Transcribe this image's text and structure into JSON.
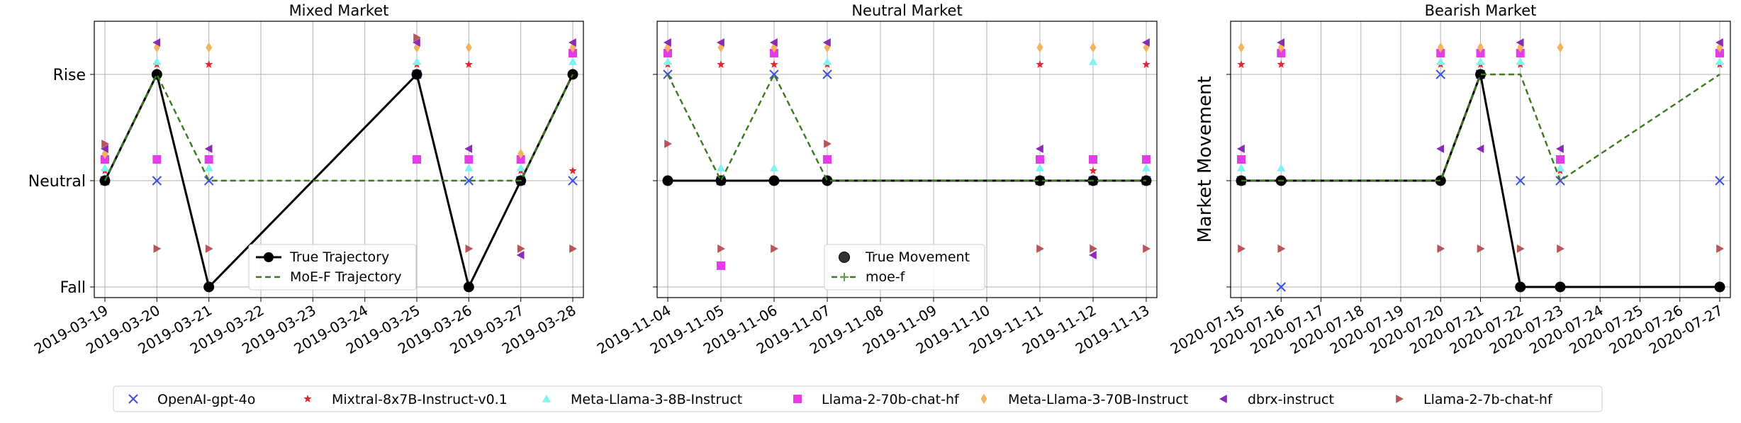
{
  "chart_data": [
    {
      "type": "line",
      "title": "Mixed Market",
      "xlabel": "",
      "ylabel": "",
      "x": [
        "2019-03-19",
        "2019-03-20",
        "2019-03-21",
        "2019-03-22",
        "2019-03-23",
        "2019-03-24",
        "2019-03-25",
        "2019-03-26",
        "2019-03-27",
        "2019-03-28"
      ],
      "y_categories": [
        "Fall",
        "Neutral",
        "Rise"
      ],
      "ylim": [
        -1.1,
        2.0
      ],
      "grid": true,
      "legend_position": "bottom-center",
      "series": [
        {
          "name": "True Trajectory",
          "style": "solid-marker",
          "color": "#000000",
          "points": [
            [
              "2019-03-19",
              1
            ],
            [
              "2019-03-20",
              2
            ],
            [
              "2019-03-21",
              0
            ],
            [
              "2019-03-25",
              2
            ],
            [
              "2019-03-26",
              0
            ],
            [
              "2019-03-27",
              1
            ],
            [
              "2019-03-28",
              2
            ]
          ]
        },
        {
          "name": "MoE-F Trajectory",
          "style": "dashed",
          "color": "#3b7a1a",
          "points": [
            [
              "2019-03-19",
              1
            ],
            [
              "2019-03-20",
              2
            ],
            [
              "2019-03-21",
              1
            ],
            [
              "2019-03-25",
              1
            ],
            [
              "2019-03-26",
              1
            ],
            [
              "2019-03-27",
              1
            ],
            [
              "2019-03-28",
              2
            ]
          ]
        }
      ],
      "expert_predictions": {
        "OpenAI-gpt-4o": [
          [
            "2019-03-19",
            1
          ],
          [
            "2019-03-20",
            1
          ],
          [
            "2019-03-21",
            1
          ],
          [
            "2019-03-25",
            2
          ],
          [
            "2019-03-26",
            1
          ],
          [
            "2019-03-27",
            1
          ],
          [
            "2019-03-28",
            1
          ]
        ],
        "Mixtral-8x7B-Instruct-v0.1": [
          [
            "2019-03-19",
            1
          ],
          [
            "2019-03-20",
            2
          ],
          [
            "2019-03-21",
            2
          ],
          [
            "2019-03-25",
            2
          ],
          [
            "2019-03-26",
            2
          ],
          [
            "2019-03-27",
            1
          ],
          [
            "2019-03-28",
            1
          ]
        ],
        "Meta-Llama-3-8B-Instruct": [
          [
            "2019-03-19",
            1
          ],
          [
            "2019-03-20",
            2
          ],
          [
            "2019-03-21",
            1
          ],
          [
            "2019-03-25",
            2
          ],
          [
            "2019-03-26",
            1
          ],
          [
            "2019-03-27",
            1
          ],
          [
            "2019-03-28",
            2
          ]
        ],
        "Llama-2-70b-chat-hf": [
          [
            "2019-03-19",
            1
          ],
          [
            "2019-03-20",
            1
          ],
          [
            "2019-03-21",
            1
          ],
          [
            "2019-03-25",
            1
          ],
          [
            "2019-03-26",
            1
          ],
          [
            "2019-03-27",
            1
          ],
          [
            "2019-03-28",
            2
          ]
        ],
        "Meta-Llama-3-70B-Instruct": [
          [
            "2019-03-19",
            1
          ],
          [
            "2019-03-20",
            2
          ],
          [
            "2019-03-21",
            2
          ],
          [
            "2019-03-25",
            2
          ],
          [
            "2019-03-26",
            2
          ],
          [
            "2019-03-27",
            1
          ],
          [
            "2019-03-28",
            2
          ]
        ],
        "dbrx-instruct": [
          [
            "2019-03-19",
            1
          ],
          [
            "2019-03-20",
            2
          ],
          [
            "2019-03-21",
            1
          ],
          [
            "2019-03-25",
            2
          ],
          [
            "2019-03-26",
            1
          ],
          [
            "2019-03-27",
            0
          ],
          [
            "2019-03-28",
            2
          ]
        ],
        "Llama-2-7b-chat-hf": [
          [
            "2019-03-19",
            1
          ],
          [
            "2019-03-20",
            0
          ],
          [
            "2019-03-21",
            0
          ],
          [
            "2019-03-25",
            2
          ],
          [
            "2019-03-26",
            0
          ],
          [
            "2019-03-27",
            0
          ],
          [
            "2019-03-28",
            0
          ]
        ]
      }
    },
    {
      "type": "line",
      "title": "Neutral Market",
      "xlabel": "",
      "ylabel": "",
      "x": [
        "2019-11-04",
        "2019-11-05",
        "2019-11-06",
        "2019-11-07",
        "2019-11-08",
        "2019-11-09",
        "2019-11-10",
        "2019-11-11",
        "2019-11-12",
        "2019-11-13"
      ],
      "y_categories": [
        "Fall",
        "Neutral",
        "Rise"
      ],
      "ylim": [
        -1.1,
        2.0
      ],
      "grid": true,
      "legend_position": "bottom-center",
      "series": [
        {
          "name": "True Movement",
          "style": "marker",
          "color": "#000000",
          "points": [
            [
              "2019-11-04",
              1
            ],
            [
              "2019-11-05",
              1
            ],
            [
              "2019-11-06",
              1
            ],
            [
              "2019-11-07",
              1
            ],
            [
              "2019-11-11",
              1
            ],
            [
              "2019-11-12",
              1
            ],
            [
              "2019-11-13",
              1
            ]
          ]
        },
        {
          "name": "moe-f",
          "style": "dashed",
          "color": "#3b7a1a",
          "points": [
            [
              "2019-11-04",
              2
            ],
            [
              "2019-11-05",
              1
            ],
            [
              "2019-11-06",
              2
            ],
            [
              "2019-11-07",
              1
            ],
            [
              "2019-11-11",
              1
            ],
            [
              "2019-11-12",
              1
            ],
            [
              "2019-11-13",
              1
            ]
          ]
        }
      ],
      "expert_predictions": {
        "OpenAI-gpt-4o": [
          [
            "2019-11-04",
            2
          ],
          [
            "2019-11-05",
            1
          ],
          [
            "2019-11-06",
            2
          ],
          [
            "2019-11-07",
            2
          ],
          [
            "2019-11-11",
            1
          ],
          [
            "2019-11-12",
            1
          ],
          [
            "2019-11-13",
            1
          ]
        ],
        "Mixtral-8x7B-Instruct-v0.1": [
          [
            "2019-11-04",
            2
          ],
          [
            "2019-11-05",
            2
          ],
          [
            "2019-11-06",
            2
          ],
          [
            "2019-11-07",
            2
          ],
          [
            "2019-11-11",
            2
          ],
          [
            "2019-11-12",
            1
          ],
          [
            "2019-11-13",
            2
          ]
        ],
        "Meta-Llama-3-8B-Instruct": [
          [
            "2019-11-04",
            2
          ],
          [
            "2019-11-05",
            1
          ],
          [
            "2019-11-06",
            1
          ],
          [
            "2019-11-07",
            2
          ],
          [
            "2019-11-11",
            1
          ],
          [
            "2019-11-12",
            2
          ],
          [
            "2019-11-13",
            1
          ]
        ],
        "Llama-2-70b-chat-hf": [
          [
            "2019-11-04",
            2
          ],
          [
            "2019-11-05",
            0
          ],
          [
            "2019-11-06",
            2
          ],
          [
            "2019-11-07",
            1
          ],
          [
            "2019-11-11",
            1
          ],
          [
            "2019-11-12",
            1
          ],
          [
            "2019-11-13",
            1
          ]
        ],
        "Meta-Llama-3-70B-Instruct": [
          [
            "2019-11-04",
            2
          ],
          [
            "2019-11-05",
            2
          ],
          [
            "2019-11-06",
            2
          ],
          [
            "2019-11-07",
            2
          ],
          [
            "2019-11-11",
            2
          ],
          [
            "2019-11-12",
            2
          ],
          [
            "2019-11-13",
            2
          ]
        ],
        "dbrx-instruct": [
          [
            "2019-11-04",
            2
          ],
          [
            "2019-11-05",
            2
          ],
          [
            "2019-11-06",
            2
          ],
          [
            "2019-11-07",
            2
          ],
          [
            "2019-11-11",
            1
          ],
          [
            "2019-11-12",
            0
          ],
          [
            "2019-11-13",
            2
          ]
        ],
        "Llama-2-7b-chat-hf": [
          [
            "2019-11-04",
            1
          ],
          [
            "2019-11-05",
            0
          ],
          [
            "2019-11-06",
            0
          ],
          [
            "2019-11-07",
            1
          ],
          [
            "2019-11-11",
            0
          ],
          [
            "2019-11-12",
            0
          ],
          [
            "2019-11-13",
            0
          ]
        ]
      }
    },
    {
      "type": "line",
      "title": "Bearish Market",
      "xlabel": "",
      "ylabel": "Market Movement",
      "x": [
        "2020-07-15",
        "2020-07-16",
        "2020-07-17",
        "2020-07-18",
        "2020-07-19",
        "2020-07-20",
        "2020-07-21",
        "2020-07-22",
        "2020-07-23",
        "2020-07-24",
        "2020-07-25",
        "2020-07-26",
        "2020-07-27"
      ],
      "y_categories": [
        "Fall",
        "Neutral",
        "Rise"
      ],
      "ylim": [
        -1.1,
        2.0
      ],
      "grid": true,
      "series": [
        {
          "name": "True Movement",
          "style": "solid-marker",
          "color": "#000000",
          "points": [
            [
              "2020-07-15",
              1
            ],
            [
              "2020-07-16",
              1
            ],
            [
              "2020-07-20",
              1
            ],
            [
              "2020-07-21",
              2
            ],
            [
              "2020-07-22",
              0
            ],
            [
              "2020-07-23",
              0
            ],
            [
              "2020-07-27",
              0
            ]
          ]
        },
        {
          "name": "moe-f",
          "style": "dashed",
          "color": "#3b7a1a",
          "points": [
            [
              "2020-07-15",
              1
            ],
            [
              "2020-07-16",
              1
            ],
            [
              "2020-07-20",
              1
            ],
            [
              "2020-07-21",
              2
            ],
            [
              "2020-07-22",
              2
            ],
            [
              "2020-07-23",
              1
            ],
            [
              "2020-07-27",
              2
            ]
          ]
        }
      ],
      "expert_predictions": {
        "OpenAI-gpt-4o": [
          [
            "2020-07-15",
            1
          ],
          [
            "2020-07-16",
            0
          ],
          [
            "2020-07-20",
            2
          ],
          [
            "2020-07-21",
            2
          ],
          [
            "2020-07-22",
            1
          ],
          [
            "2020-07-23",
            1
          ],
          [
            "2020-07-27",
            1
          ]
        ],
        "Mixtral-8x7B-Instruct-v0.1": [
          [
            "2020-07-15",
            2
          ],
          [
            "2020-07-16",
            2
          ],
          [
            "2020-07-20",
            2
          ],
          [
            "2020-07-21",
            2
          ],
          [
            "2020-07-22",
            2
          ],
          [
            "2020-07-23",
            1
          ],
          [
            "2020-07-27",
            2
          ]
        ],
        "Meta-Llama-3-8B-Instruct": [
          [
            "2020-07-15",
            1
          ],
          [
            "2020-07-16",
            1
          ],
          [
            "2020-07-20",
            2
          ],
          [
            "2020-07-21",
            2
          ],
          [
            "2020-07-22",
            2
          ],
          [
            "2020-07-23",
            1
          ],
          [
            "2020-07-27",
            2
          ]
        ],
        "Llama-2-70b-chat-hf": [
          [
            "2020-07-15",
            1
          ],
          [
            "2020-07-16",
            2
          ],
          [
            "2020-07-20",
            2
          ],
          [
            "2020-07-21",
            2
          ],
          [
            "2020-07-22",
            2
          ],
          [
            "2020-07-23",
            1
          ],
          [
            "2020-07-27",
            2
          ]
        ],
        "Meta-Llama-3-70B-Instruct": [
          [
            "2020-07-15",
            2
          ],
          [
            "2020-07-16",
            2
          ],
          [
            "2020-07-20",
            2
          ],
          [
            "2020-07-21",
            2
          ],
          [
            "2020-07-22",
            2
          ],
          [
            "2020-07-23",
            2
          ],
          [
            "2020-07-27",
            2
          ]
        ],
        "dbrx-instruct": [
          [
            "2020-07-15",
            1
          ],
          [
            "2020-07-16",
            2
          ],
          [
            "2020-07-20",
            1
          ],
          [
            "2020-07-21",
            1
          ],
          [
            "2020-07-22",
            2
          ],
          [
            "2020-07-23",
            1
          ],
          [
            "2020-07-27",
            2
          ]
        ],
        "Llama-2-7b-chat-hf": [
          [
            "2020-07-15",
            0
          ],
          [
            "2020-07-16",
            0
          ],
          [
            "2020-07-20",
            0
          ],
          [
            "2020-07-21",
            0
          ],
          [
            "2020-07-22",
            0
          ],
          [
            "2020-07-23",
            0
          ],
          [
            "2020-07-27",
            0
          ]
        ]
      }
    }
  ],
  "markers": [
    {
      "name": "OpenAI-gpt-4o",
      "symbol": "x",
      "color": "#3b4fe4"
    },
    {
      "name": "Mixtral-8x7B-Instruct-v0.1",
      "symbol": "star",
      "color": "#e8242b"
    },
    {
      "name": "Meta-Llama-3-8B-Instruct",
      "symbol": "triangle-up",
      "color": "#7ff2f2"
    },
    {
      "name": "Llama-2-70b-chat-hf",
      "symbol": "square",
      "color": "#e43ce9"
    },
    {
      "name": "Meta-Llama-3-70B-Instruct",
      "symbol": "diamond",
      "color": "#f2b45c"
    },
    {
      "name": "dbrx-instruct",
      "symbol": "triangle-left",
      "color": "#8a2bb8"
    },
    {
      "name": "Llama-2-7b-chat-hf",
      "symbol": "triangle-right",
      "color": "#b8555a"
    }
  ],
  "colors": {
    "true": "#000000",
    "moe": "#3b7a1a",
    "grid": "#b0b0b0"
  }
}
